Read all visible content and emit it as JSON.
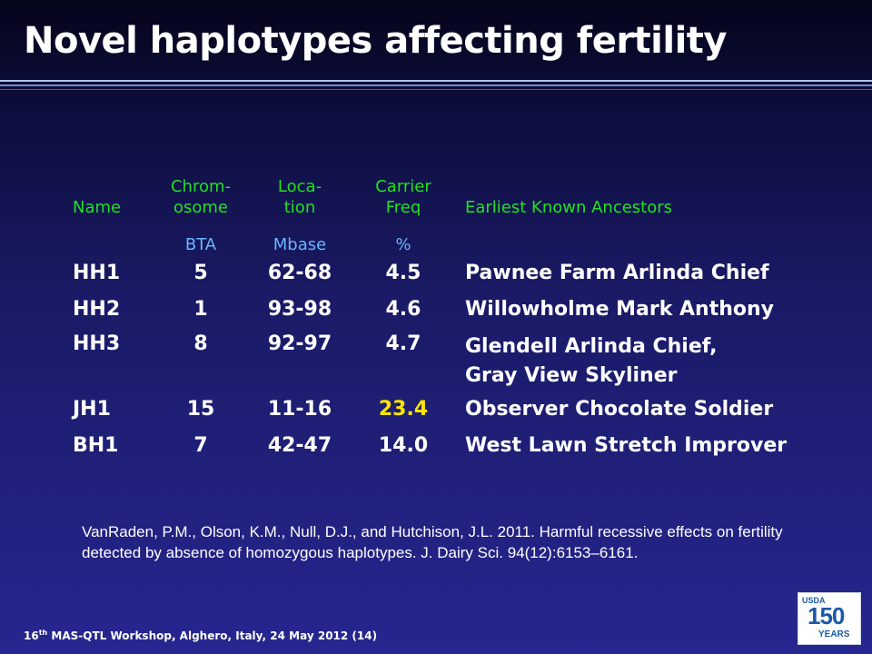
{
  "slide": {
    "title": "Novel haplotypes affecting fertility"
  },
  "table": {
    "headers": [
      [
        "Name"
      ],
      [
        "Chrom-",
        "osome"
      ],
      [
        "Loca-",
        "tion"
      ],
      [
        "Carrier",
        "Freq"
      ],
      [
        "Earliest Known Ancestors"
      ]
    ],
    "units": [
      "",
      "BTA",
      "Mbase",
      "%",
      ""
    ],
    "rows": [
      {
        "name": "HH1",
        "bta": "5",
        "location": "62-68",
        "freq": "4.5",
        "ancestors": [
          "Pawnee Farm Arlinda Chief"
        ]
      },
      {
        "name": "HH2",
        "bta": "1",
        "location": "93-98",
        "freq": "4.6",
        "ancestors": [
          "Willowholme Mark Anthony"
        ]
      },
      {
        "name": "HH3",
        "bta": "8",
        "location": "92-97",
        "freq": "4.7",
        "ancestors": [
          "Glendell Arlinda Chief,",
          "Gray View Skyliner"
        ]
      },
      {
        "name": "JH1",
        "bta": "15",
        "location": "11-16",
        "freq": "23.4",
        "ancestors": [
          "Observer Chocolate Soldier"
        ]
      },
      {
        "name": "BH1",
        "bta": "7",
        "location": "42-47",
        "freq": "14.0",
        "ancestors": [
          "West Lawn Stretch Improver"
        ]
      }
    ],
    "highlight_color": "#ffe600",
    "header_color": "#22e022",
    "unit_color": "#6ab4ff"
  },
  "citation": "VanRaden, P.M., Olson, K.M., Null, D.J., and Hutchison, J.L. 2011. Harmful recessive effects on fertility detected by absence of homozygous haplotypes. J. Dairy Sci. 94(12):6153–6161.",
  "footer": {
    "prefix": "16",
    "superscript": "th",
    "rest": " MAS-QTL Workshop, Alghero, Italy, 24 May 2012 (14)"
  },
  "logo": {
    "brand": "USDA",
    "number": "150",
    "word": "YEARS"
  }
}
